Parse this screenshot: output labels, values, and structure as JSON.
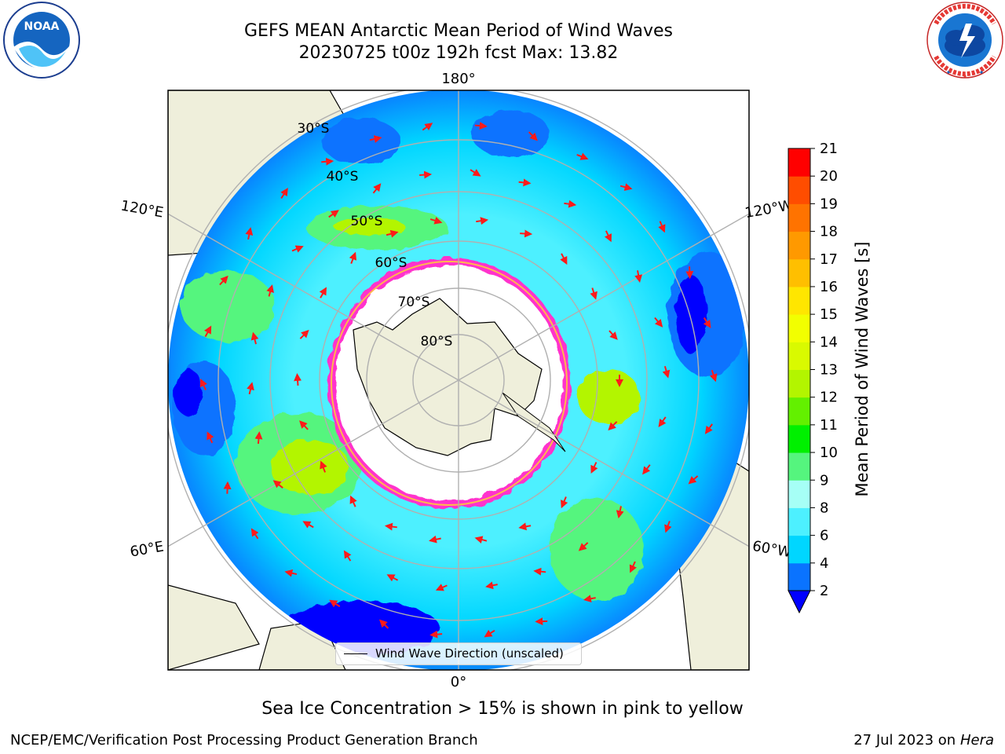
{
  "header": {
    "title_line1": "GEFS MEAN Antarctic Mean Period of Wind Waves",
    "title_line2": "20230725 t00z 192h fcst   Max: 13.82"
  },
  "logos": {
    "noaa": {
      "text": "NOAA",
      "ring_text": "NATIONAL OCEANIC AND ATMOSPHERIC ADMINISTRATION · U.S. DEPARTMENT OF COMMERCE"
    },
    "nws": {
      "ring_text": "NATIONAL WEATHER SERVICE"
    }
  },
  "map": {
    "projection": "south-polar-stereographic",
    "lon_labels": {
      "top": "180°",
      "bottom": "0°",
      "upper_left": "120°E",
      "upper_right": "120°W",
      "lower_left": "60°E",
      "lower_right": "60°W"
    },
    "lat_labels": [
      "30°S",
      "40°S",
      "50°S",
      "60°S",
      "70°S",
      "80°S"
    ],
    "legend_label": "Wind Wave Direction (unscaled)"
  },
  "colorbar": {
    "label": "Mean Period of Wind Waves [s]",
    "ticks": [
      "2",
      "4",
      "6",
      "8",
      "9",
      "10",
      "11",
      "12",
      "13",
      "14",
      "15",
      "16",
      "17",
      "18",
      "19",
      "20",
      "21"
    ],
    "colors": [
      "#0a73ff",
      "#00d6ff",
      "#4df0ff",
      "#a6fff6",
      "#55f57e",
      "#00f000",
      "#63f000",
      "#b3f500",
      "#d9fa00",
      "#f2ff00",
      "#ffe600",
      "#ffbf00",
      "#ff9900",
      "#ff7300",
      "#ff4d00",
      "#ff0000"
    ],
    "under_color": "#0000ff"
  },
  "ice_note": "Sea Ice Concentration > 15% is shown in pink to yellow",
  "footer": {
    "left": "NCEP/EMC/Verification Post Processing Product Generation Branch",
    "right_prefix": "27 Jul 2023 on ",
    "right_host": "Hera"
  }
}
